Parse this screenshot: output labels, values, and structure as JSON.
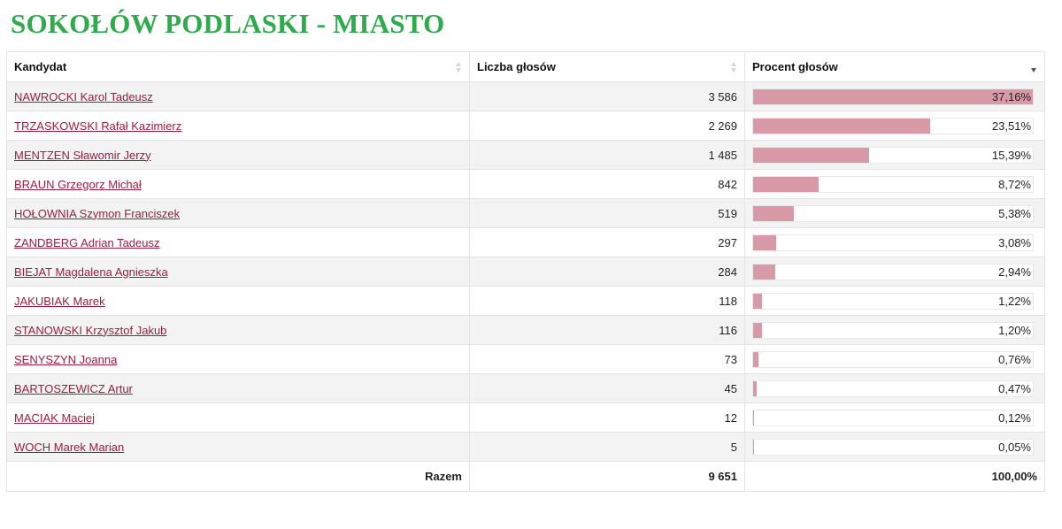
{
  "page": {
    "title": "SOKOŁÓW PODLASKI - MIASTO"
  },
  "colors": {
    "title": "#2eab4b",
    "link": "#9c1d3e",
    "bar": "#d99aa8",
    "row_alt": "#f3f3f3"
  },
  "table": {
    "headers": {
      "candidate": "Kandydat",
      "votes": "Liczba głosów",
      "percent": "Procent głosów"
    },
    "sorted_by": "percent",
    "sort_direction": "desc",
    "rows": [
      {
        "name": "NAWROCKI Karol Tadeusz",
        "votes": "3 586",
        "percent_label": "37,16%",
        "percent": 37.16
      },
      {
        "name": "TRZASKOWSKI Rafał Kazimierz",
        "votes": "2 269",
        "percent_label": "23,51%",
        "percent": 23.51
      },
      {
        "name": "MENTZEN Sławomir Jerzy",
        "votes": "1 485",
        "percent_label": "15,39%",
        "percent": 15.39
      },
      {
        "name": "BRAUN Grzegorz Michał",
        "votes": "842",
        "percent_label": "8,72%",
        "percent": 8.72
      },
      {
        "name": "HOŁOWNIA Szymon Franciszek",
        "votes": "519",
        "percent_label": "5,38%",
        "percent": 5.38
      },
      {
        "name": "ZANDBERG Adrian Tadeusz",
        "votes": "297",
        "percent_label": "3,08%",
        "percent": 3.08
      },
      {
        "name": "BIEJAT Magdalena Agnieszka",
        "votes": "284",
        "percent_label": "2,94%",
        "percent": 2.94
      },
      {
        "name": "JAKUBIAK Marek",
        "votes": "118",
        "percent_label": "1,22%",
        "percent": 1.22
      },
      {
        "name": "STANOWSKI Krzysztof Jakub",
        "votes": "116",
        "percent_label": "1,20%",
        "percent": 1.2
      },
      {
        "name": "SENYSZYN Joanna",
        "votes": "73",
        "percent_label": "0,76%",
        "percent": 0.76
      },
      {
        "name": "BARTOSZEWICZ Artur",
        "votes": "45",
        "percent_label": "0,47%",
        "percent": 0.47
      },
      {
        "name": "MACIAK Maciej",
        "votes": "12",
        "percent_label": "0,12%",
        "percent": 0.12
      },
      {
        "name": "WOCH Marek Marian",
        "votes": "5",
        "percent_label": "0,05%",
        "percent": 0.05
      }
    ],
    "footer": {
      "label": "Razem",
      "votes": "9 651",
      "percent": "100,00%"
    }
  }
}
